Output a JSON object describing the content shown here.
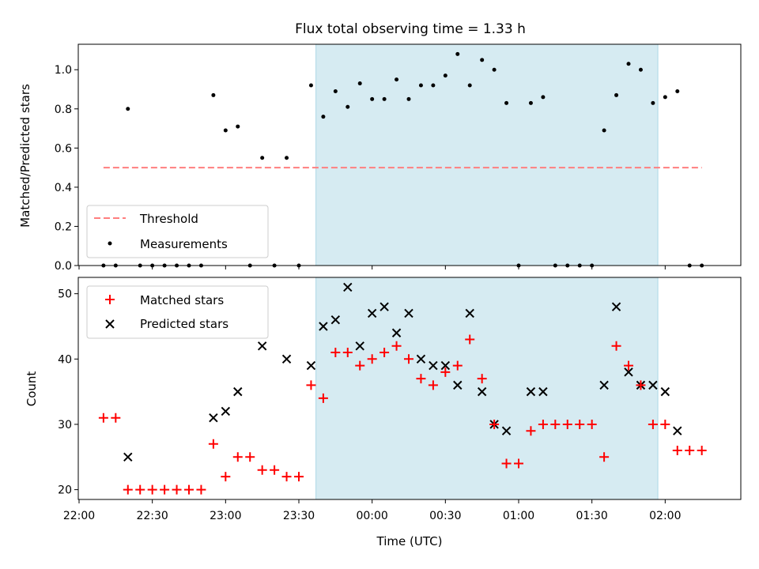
{
  "colors": {
    "threshold": "#ff7f7f",
    "measurement": "#000000",
    "matched": "#ff0000",
    "predicted": "#000000",
    "shade": "#add8e6"
  },
  "chart_data": [
    {
      "type": "scatter",
      "title": "Flux total observing time = 1.33 h",
      "xlabel": "",
      "ylabel": "Matched/Predicted stars",
      "x_unit": "minutes since 22:00",
      "xlim": [
        "22:00",
        "02:30"
      ],
      "ylim": [
        0,
        1.13
      ],
      "yticks": [
        "0.0",
        "0.2",
        "0.4",
        "0.6",
        "0.8",
        "1.0"
      ],
      "shaded_region": [
        "23:37",
        "01:57"
      ],
      "legend": [
        "Threshold",
        "Measurements"
      ],
      "legend_position": "lower left",
      "threshold": {
        "name": "Threshold",
        "value": 0.5,
        "x_range": [
          "22:10",
          "02:15"
        ]
      },
      "series": [
        {
          "name": "Measurements",
          "x": [
            "22:10",
            "22:15",
            "22:20",
            "22:25",
            "22:30",
            "22:35",
            "22:40",
            "22:45",
            "22:50",
            "22:55",
            "23:00",
            "23:05",
            "23:10",
            "23:15",
            "23:20",
            "23:25",
            "23:30",
            "23:35",
            "23:40",
            "23:45",
            "23:50",
            "23:55",
            "00:00",
            "00:05",
            "00:10",
            "00:15",
            "00:20",
            "00:25",
            "00:30",
            "00:35",
            "00:40",
            "00:45",
            "00:50",
            "00:55",
            "01:00",
            "01:05",
            "01:10",
            "01:15",
            "01:20",
            "01:25",
            "01:30",
            "01:35",
            "01:40",
            "01:45",
            "01:50",
            "01:55",
            "02:00",
            "02:05",
            "02:10",
            "02:15"
          ],
          "y": [
            0,
            0,
            0.8,
            0,
            0,
            0,
            0,
            0,
            0,
            0.87,
            0.69,
            0.71,
            0,
            0.55,
            0,
            0.55,
            0,
            0.92,
            0.76,
            0.89,
            0.81,
            0.93,
            0.85,
            0.85,
            0.95,
            0.85,
            0.92,
            0.92,
            0.97,
            1.08,
            0.92,
            1.05,
            1.0,
            0.83,
            0,
            0.83,
            0.86,
            0,
            0,
            0,
            0,
            0.69,
            0.87,
            1.03,
            1.0,
            0.83,
            0.86,
            0.89,
            0,
            0
          ]
        }
      ]
    },
    {
      "type": "scatter",
      "title": "",
      "xlabel": "Time (UTC)",
      "ylabel": "Count",
      "x_unit": "minutes since 22:00",
      "xlim": [
        "22:00",
        "02:30"
      ],
      "ylim": [
        18.5,
        52.5
      ],
      "yticks": [
        "20",
        "30",
        "40",
        "50"
      ],
      "xticks": [
        "22:00",
        "22:30",
        "23:00",
        "23:30",
        "00:00",
        "00:30",
        "01:00",
        "01:30",
        "02:00"
      ],
      "shaded_region": [
        "23:37",
        "01:57"
      ],
      "legend": [
        "Matched stars",
        "Predicted stars"
      ],
      "legend_position": "upper left",
      "series": [
        {
          "name": "Matched stars",
          "x": [
            "22:10",
            "22:15",
            "22:20",
            "22:25",
            "22:30",
            "22:35",
            "22:40",
            "22:45",
            "22:50",
            "22:55",
            "23:00",
            "23:05",
            "23:10",
            "23:15",
            "23:20",
            "23:25",
            "23:30",
            "23:35",
            "23:40",
            "23:45",
            "23:50",
            "23:55",
            "00:00",
            "00:05",
            "00:10",
            "00:15",
            "00:20",
            "00:25",
            "00:30",
            "00:35",
            "00:40",
            "00:45",
            "00:50",
            "00:55",
            "01:00",
            "01:05",
            "01:10",
            "01:15",
            "01:20",
            "01:25",
            "01:30",
            "01:35",
            "01:40",
            "01:45",
            "01:50",
            "01:55",
            "02:00",
            "02:05",
            "02:10",
            "02:15"
          ],
          "y": [
            31,
            31,
            20,
            20,
            20,
            20,
            20,
            20,
            20,
            27,
            22,
            25,
            25,
            23,
            23,
            22,
            22,
            36,
            34,
            41,
            41,
            39,
            40,
            41,
            42,
            40,
            37,
            36,
            38,
            39,
            43,
            37,
            30,
            24,
            24,
            29,
            30,
            30,
            30,
            30,
            30,
            25,
            42,
            39,
            36,
            30,
            30,
            26,
            26,
            26
          ]
        },
        {
          "name": "Predicted stars",
          "x": [
            "22:20",
            "22:55",
            "23:00",
            "23:05",
            "23:15",
            "23:25",
            "23:35",
            "23:40",
            "23:45",
            "23:50",
            "23:55",
            "00:00",
            "00:05",
            "00:10",
            "00:15",
            "00:20",
            "00:25",
            "00:30",
            "00:35",
            "00:40",
            "00:45",
            "00:50",
            "00:55",
            "01:05",
            "01:10",
            "01:35",
            "01:40",
            "01:45",
            "01:50",
            "01:55",
            "02:00",
            "02:05"
          ],
          "y": [
            25,
            31,
            32,
            35,
            42,
            40,
            39,
            45,
            46,
            51,
            42,
            47,
            48,
            44,
            47,
            40,
            39,
            39,
            36,
            47,
            35,
            30,
            29,
            35,
            35,
            36,
            48,
            38,
            36,
            36,
            35,
            29
          ]
        }
      ]
    }
  ]
}
